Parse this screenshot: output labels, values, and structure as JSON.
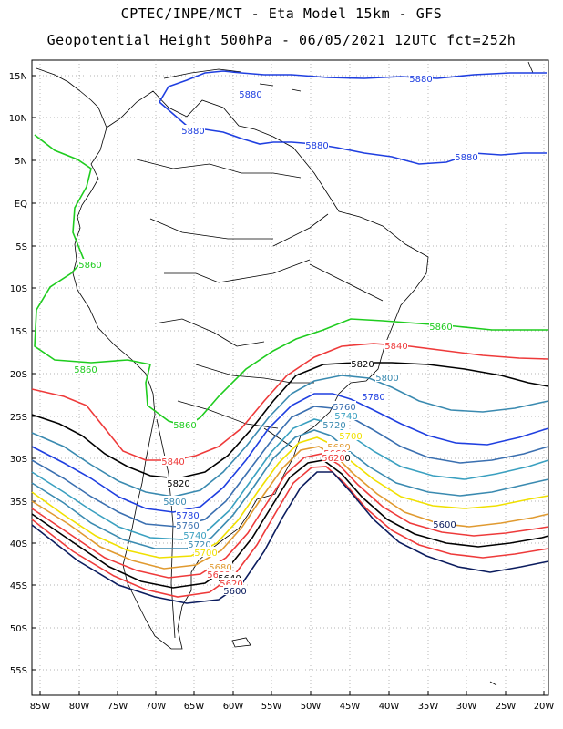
{
  "header": {
    "line1": "CPTEC/INPE/MCT -  Eta Model 15km - GFS",
    "line2": "Geopotential Height 500hPa - 06/05/2021 12UTC fct=252h"
  },
  "axes": {
    "lat_labels": [
      "15N",
      "10N",
      "5N",
      "EQ",
      "5S",
      "10S",
      "15S",
      "20S",
      "25S",
      "30S",
      "35S",
      "40S",
      "45S",
      "50S",
      "55S"
    ],
    "lon_labels": [
      "85W",
      "80W",
      "75W",
      "70W",
      "65W",
      "60W",
      "55W",
      "50W",
      "45W",
      "40W",
      "35W",
      "30W",
      "25W",
      "20W"
    ]
  },
  "contours": [
    {
      "value": "5880",
      "color": "#1f3fe0"
    },
    {
      "value": "5860",
      "color": "#1fcc1f"
    },
    {
      "value": "5840",
      "color": "#ee3a3a"
    },
    {
      "value": "5820",
      "color": "#000000"
    },
    {
      "value": "5800",
      "color": "#3a8ab0"
    },
    {
      "value": "5780",
      "color": "#1f3fe0"
    },
    {
      "value": "5760",
      "color": "#3a6fb0"
    },
    {
      "value": "5740",
      "color": "#3aa0c0"
    },
    {
      "value": "5720",
      "color": "#3a8ab0"
    },
    {
      "value": "5700",
      "color": "#f0e000"
    },
    {
      "value": "5680",
      "color": "#e09a30"
    },
    {
      "value": "5660",
      "color": "#ee3a3a"
    },
    {
      "value": "5640",
      "color": "#000000"
    },
    {
      "value": "5620",
      "color": "#ee3a3a"
    },
    {
      "value": "5600",
      "color": "#0b1c5e"
    }
  ]
}
